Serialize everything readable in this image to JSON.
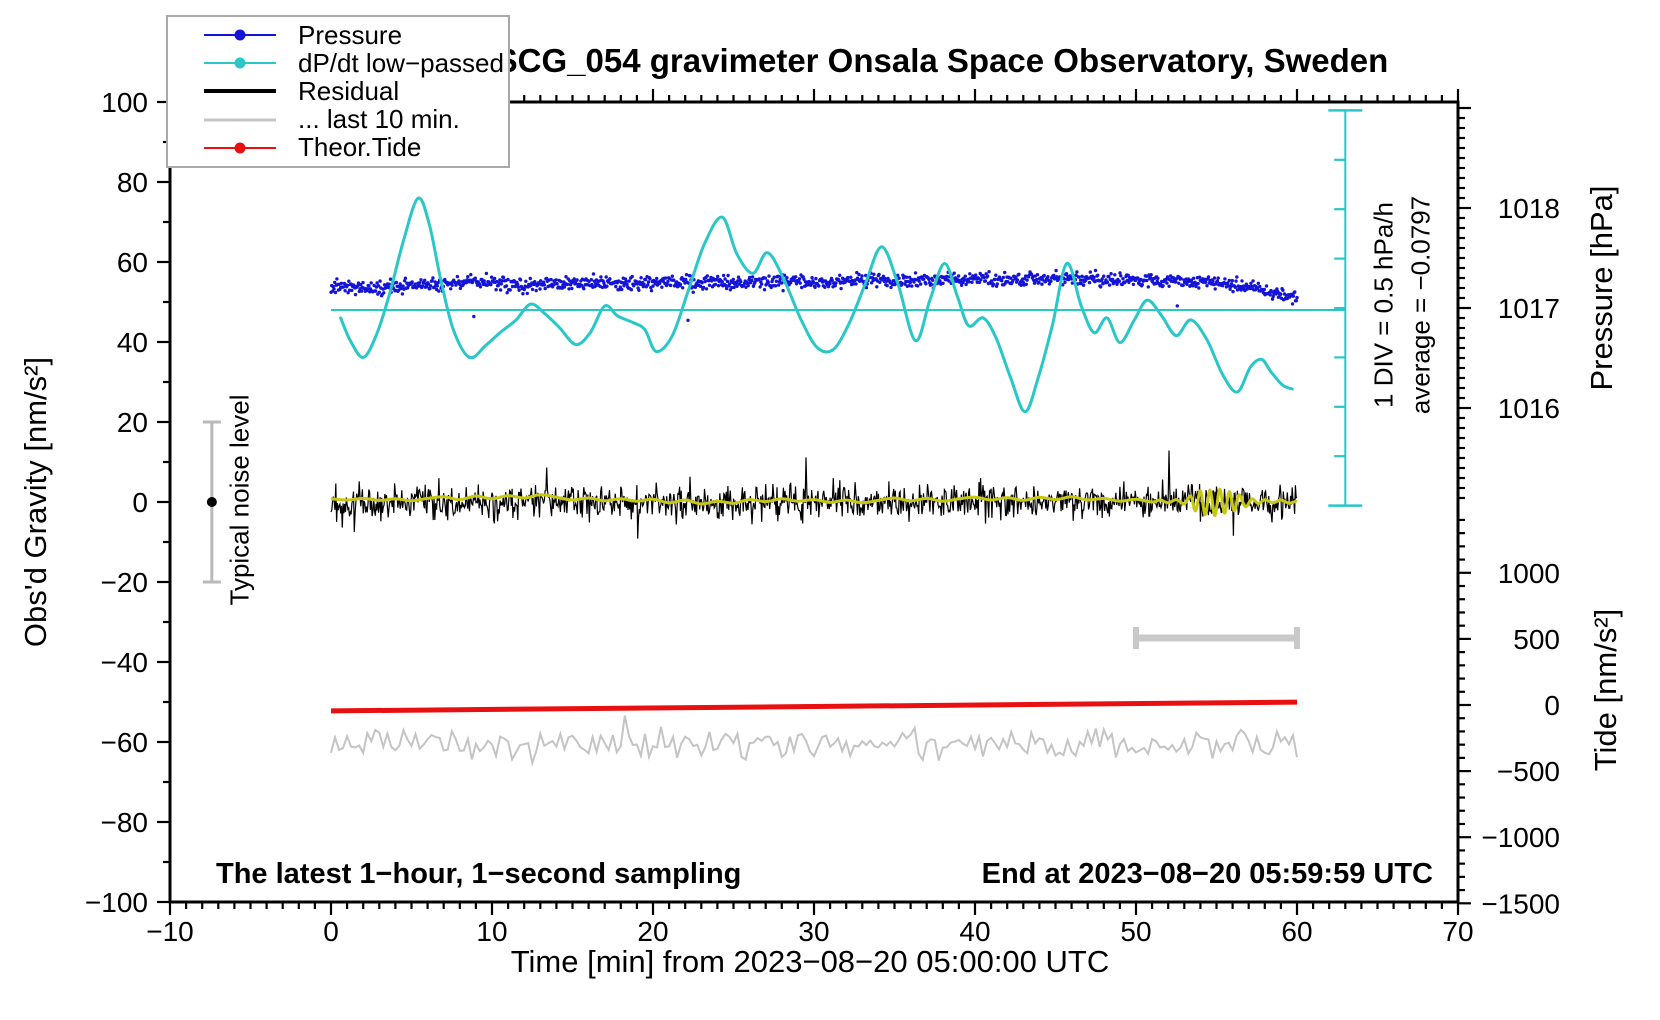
{
  "title": "SCG_054 gravimeter Onsala Space Observatory, Sweden",
  "legend": {
    "items": [
      {
        "label": "Pressure",
        "color": "#1414d8",
        "marker": true,
        "thickness": 2
      },
      {
        "label": "dP/dt low−passed",
        "color": "#29c7c7",
        "marker": true,
        "thickness": 2
      },
      {
        "label": "Residual",
        "color": "#000000",
        "marker": false,
        "thickness": 4
      },
      {
        "label": "... last 10 min.",
        "color": "#c4c4c4",
        "marker": false,
        "thickness": 3
      },
      {
        "label": "Theor.Tide",
        "color": "#e81010",
        "marker": true,
        "thickness": 2
      }
    ]
  },
  "annotations": {
    "noise_level_label": "Typical noise level",
    "div_scale_label": "1 DIV = 0.5 hPa/h",
    "average_label": "average = −0.0797",
    "sampling_note": "The latest 1−hour, 1−second sampling",
    "end_note": "End at 2023−08−20 05:59:59 UTC"
  },
  "axes": {
    "x": {
      "title": "Time [min] from 2023−08−20 05:00:00 UTC",
      "min": -10,
      "max": 70,
      "major": 10,
      "minor": 1,
      "tick_labels": [
        "−10",
        "0",
        "10",
        "20",
        "30",
        "40",
        "50",
        "60",
        "70"
      ]
    },
    "y_left": {
      "title": "Obs'd Gravity [nm/s²]",
      "min": -100,
      "max": 100,
      "major": 20,
      "minor": 10,
      "tick_labels": [
        "100",
        "80",
        "60",
        "40",
        "20",
        "0",
        "−20",
        "−40",
        "−60",
        "−80",
        "−100"
      ]
    },
    "y_right_pressure": {
      "title": "Pressure [hPa]",
      "major": 1,
      "minor": 0.1,
      "tick_labels": [
        "1018",
        "1017",
        "1016"
      ],
      "tick_values": [
        1018,
        1017,
        1016
      ]
    },
    "y_right_tide": {
      "title": "Tide [nm/s²]",
      "major": 500,
      "minor": 100,
      "tick_labels": [
        "1000",
        "500",
        "0",
        "−500",
        "−1000",
        "−1500"
      ],
      "tick_values": [
        1000,
        500,
        0,
        -500,
        -1000,
        -1500
      ]
    }
  },
  "chart_data": {
    "type": "line",
    "x_unit": "minutes",
    "x_range": [
      -10,
      70
    ],
    "gravity_range": [
      -100,
      100
    ],
    "pressure_ref": {
      "value_1017_hPa": 1017,
      "hPa_per_division": 1
    },
    "grid": false,
    "legend_position": "top-left",
    "series": [
      {
        "name": "Pressure",
        "axis": "pressure",
        "style": "scatter-band",
        "color": "#1414d8",
        "noise_std_hPa": 0.033,
        "trend": [
          [
            0,
            1017.22
          ],
          [
            3,
            1017.2
          ],
          [
            6,
            1017.23
          ],
          [
            9,
            1017.26
          ],
          [
            12,
            1017.23
          ],
          [
            15,
            1017.25
          ],
          [
            18,
            1017.24
          ],
          [
            21,
            1017.26
          ],
          [
            24,
            1017.25
          ],
          [
            27,
            1017.27
          ],
          [
            30,
            1017.26
          ],
          [
            33,
            1017.28
          ],
          [
            36,
            1017.27
          ],
          [
            39,
            1017.29
          ],
          [
            42,
            1017.28
          ],
          [
            45,
            1017.3
          ],
          [
            48,
            1017.28
          ],
          [
            51,
            1017.27
          ],
          [
            54,
            1017.26
          ],
          [
            56,
            1017.24
          ],
          [
            58,
            1017.18
          ],
          [
            59,
            1017.13
          ],
          [
            60,
            1017.1
          ]
        ]
      },
      {
        "name": "dP/dt low-passed",
        "axis": "dpdt",
        "unit": "hPa/h",
        "style": "smooth-line",
        "color": "#29c7c7",
        "points": [
          [
            0.6,
            -0.1
          ],
          [
            1.2,
            -0.33
          ],
          [
            2.0,
            -0.5
          ],
          [
            2.8,
            -0.28
          ],
          [
            3.6,
            0.12
          ],
          [
            4.5,
            0.68
          ],
          [
            5.4,
            1.11
          ],
          [
            6.1,
            0.85
          ],
          [
            6.8,
            0.3
          ],
          [
            7.6,
            -0.22
          ],
          [
            8.6,
            -0.5
          ],
          [
            9.6,
            -0.38
          ],
          [
            10.5,
            -0.25
          ],
          [
            11.5,
            -0.12
          ],
          [
            12.4,
            0.04
          ],
          [
            13.3,
            -0.06
          ],
          [
            14.2,
            -0.2
          ],
          [
            15.2,
            -0.37
          ],
          [
            16.1,
            -0.25
          ],
          [
            17.0,
            0.02
          ],
          [
            17.8,
            -0.08
          ],
          [
            18.8,
            -0.15
          ],
          [
            19.5,
            -0.22
          ],
          [
            20.2,
            -0.44
          ],
          [
            21.2,
            -0.28
          ],
          [
            22.2,
            0.18
          ],
          [
            23.2,
            0.65
          ],
          [
            24.3,
            0.92
          ],
          [
            25.2,
            0.55
          ],
          [
            26.2,
            0.35
          ],
          [
            27.1,
            0.56
          ],
          [
            28.1,
            0.3
          ],
          [
            29.2,
            -0.12
          ],
          [
            30.2,
            -0.4
          ],
          [
            31.2,
            -0.42
          ],
          [
            32.2,
            -0.15
          ],
          [
            33.2,
            0.25
          ],
          [
            34.2,
            0.62
          ],
          [
            35.2,
            0.25
          ],
          [
            36.3,
            -0.33
          ],
          [
            37.2,
            0.08
          ],
          [
            38.1,
            0.45
          ],
          [
            38.9,
            0.12
          ],
          [
            39.6,
            -0.18
          ],
          [
            40.5,
            -0.1
          ],
          [
            41.3,
            -0.3
          ],
          [
            42.2,
            -0.7
          ],
          [
            43.1,
            -1.05
          ],
          [
            43.9,
            -0.72
          ],
          [
            44.8,
            -0.18
          ],
          [
            45.7,
            0.45
          ],
          [
            46.6,
            0.02
          ],
          [
            47.4,
            -0.25
          ],
          [
            48.2,
            -0.1
          ],
          [
            49.0,
            -0.35
          ],
          [
            49.9,
            -0.12
          ],
          [
            50.7,
            0.08
          ],
          [
            51.6,
            -0.08
          ],
          [
            52.5,
            -0.28
          ],
          [
            53.4,
            -0.12
          ],
          [
            54.4,
            -0.32
          ],
          [
            55.4,
            -0.68
          ],
          [
            56.3,
            -0.85
          ],
          [
            57.1,
            -0.6
          ],
          [
            57.8,
            -0.52
          ],
          [
            58.4,
            -0.65
          ],
          [
            59.1,
            -0.78
          ],
          [
            59.7,
            -0.82
          ]
        ],
        "average_hPa_per_h": -0.0797
      },
      {
        "name": "Residual",
        "axis": "gravity",
        "style": "noise-line",
        "color": "#000000",
        "mean": 0,
        "noise_std": 2.1,
        "x_span": [
          0,
          60
        ]
      },
      {
        "name": "Residual low-passed",
        "axis": "gravity",
        "style": "line",
        "color": "#c8c814",
        "points": [
          [
            0,
            0.8
          ],
          [
            1,
            0.5
          ],
          [
            2,
            0.9
          ],
          [
            3,
            0.4
          ],
          [
            4,
            0.8
          ],
          [
            5,
            0.3
          ],
          [
            6,
            0.9
          ],
          [
            7,
            1.3
          ],
          [
            8,
            0.6
          ],
          [
            9,
            1.5
          ],
          [
            10,
            0.8
          ],
          [
            11,
            1.6
          ],
          [
            12,
            1.0
          ],
          [
            13,
            1.8
          ],
          [
            14,
            1.2
          ],
          [
            15,
            0.5
          ],
          [
            16,
            1.0
          ],
          [
            17,
            0.3
          ],
          [
            18,
            0.8
          ],
          [
            19,
            0.2
          ],
          [
            20,
            0.7
          ],
          [
            21,
            -0.2
          ],
          [
            22,
            0.5
          ],
          [
            23,
            -0.5
          ],
          [
            24,
            0.2
          ],
          [
            25,
            -0.3
          ],
          [
            26,
            0.6
          ],
          [
            27,
            0.1
          ],
          [
            28,
            0.8
          ],
          [
            29,
            0.2
          ],
          [
            30,
            0.6
          ],
          [
            31,
            -0.1
          ],
          [
            32,
            0.5
          ],
          [
            33,
            -0.2
          ],
          [
            34,
            0.4
          ],
          [
            35,
            1.0
          ],
          [
            36,
            0.3
          ],
          [
            37,
            0.9
          ],
          [
            38,
            0.2
          ],
          [
            39,
            0.8
          ],
          [
            40,
            1.2
          ],
          [
            41,
            0.5
          ],
          [
            42,
            1.1
          ],
          [
            43,
            0.4
          ],
          [
            44,
            1.2
          ],
          [
            45,
            0.6
          ],
          [
            46,
            1.3
          ],
          [
            47,
            0.5
          ],
          [
            48,
            0.9
          ],
          [
            49,
            0.2
          ],
          [
            50,
            0.7
          ],
          [
            51,
            0.0
          ],
          [
            51.5,
            0.5
          ],
          [
            52,
            -0.2
          ],
          [
            52.5,
            0.6
          ],
          [
            53,
            -0.5
          ],
          [
            53.4,
            1.5
          ],
          [
            53.7,
            -2.2
          ],
          [
            54.0,
            2.8
          ],
          [
            54.3,
            -3.2
          ],
          [
            54.6,
            3.0
          ],
          [
            54.9,
            -3.4
          ],
          [
            55.2,
            3.2
          ],
          [
            55.5,
            -2.8
          ],
          [
            55.8,
            2.6
          ],
          [
            56.1,
            -2.2
          ],
          [
            56.4,
            1.8
          ],
          [
            56.8,
            -1.2
          ],
          [
            57.2,
            0.8
          ],
          [
            57.6,
            -0.4
          ],
          [
            58.0,
            0.6
          ],
          [
            58.5,
            -0.2
          ],
          [
            59.0,
            0.5
          ],
          [
            59.5,
            -0.3
          ],
          [
            60.0,
            0.3
          ]
        ]
      },
      {
        "name": "... last 10 min.",
        "axis": "gravity",
        "style": "noise-line",
        "color": "#c4c4c4",
        "mean": -60.5,
        "noise_std": 1.7,
        "x_span": [
          0,
          60
        ]
      },
      {
        "name": "Theor.Tide",
        "axis": "tide",
        "style": "line",
        "color": "#e81010",
        "points": [
          [
            0,
            -45
          ],
          [
            60,
            22
          ]
        ]
      }
    ],
    "dpdt_scale_bar": {
      "x_min": 63,
      "from_div": -2,
      "to_div": 2,
      "division_hPa_per_h": 0.5
    },
    "dpdt_average_line": {
      "value": -0.02,
      "from_min": 0,
      "to_min": 63
    },
    "noise_error_bar": {
      "x_min": -7.4,
      "center": 0,
      "half_range": 20
    },
    "last10_span_bar": {
      "from_min": 50,
      "to_min": 60,
      "gravity_level": -34
    }
  }
}
